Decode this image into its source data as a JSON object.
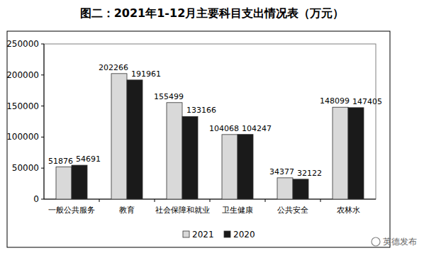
{
  "chart_data": {
    "type": "bar",
    "title": "图二：2021年1-12月主要科目支出情况表（万元）",
    "categories": [
      "一般公共服务",
      "教育",
      "社会保障和就业",
      "卫生健康",
      "公共安全",
      "农林水"
    ],
    "series": [
      {
        "name": "2021",
        "color": "#d9d9d9",
        "values": [
          51876,
          202266,
          155499,
          104068,
          34377,
          148099
        ]
      },
      {
        "name": "2020",
        "color": "#1a1a1a",
        "values": [
          54691,
          191961,
          133166,
          104247,
          32122,
          147405
        ]
      }
    ],
    "ylim": [
      0,
      250000
    ],
    "yticks": [
      0,
      50000,
      100000,
      150000,
      200000,
      250000
    ],
    "grid": false,
    "data_labels": true,
    "legend": "bottom",
    "annotation": "英德发布"
  }
}
